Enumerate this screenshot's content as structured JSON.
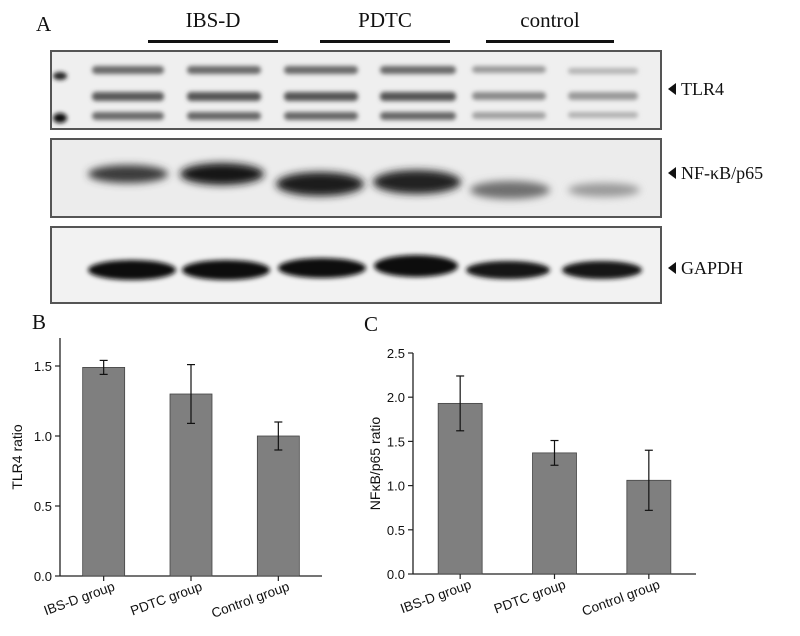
{
  "panel_a": {
    "letter": "A",
    "groups": [
      "IBS-D",
      "PDTC",
      "control"
    ],
    "bands": [
      {
        "name": "TLR4"
      },
      {
        "name": "NF-κB/p65"
      },
      {
        "name": "GAPDH"
      }
    ]
  },
  "panel_b": {
    "letter": "B"
  },
  "panel_c": {
    "letter": "C"
  },
  "chart_data": [
    {
      "type": "bar",
      "categories": [
        "IBS-D group",
        "PDTC group",
        "Control group"
      ],
      "values": [
        1.49,
        1.3,
        1.0
      ],
      "errors": [
        0.05,
        0.21,
        0.1
      ],
      "ylabel": "TLR4 ratio",
      "xlabel": "",
      "ylim": [
        0,
        1.7
      ],
      "yticks": [
        "0.0",
        "0.5",
        "1.0",
        "1.5"
      ],
      "bar_color": "#7f7f7f",
      "grid": false
    },
    {
      "type": "bar",
      "categories": [
        "IBS-D group",
        "PDTC group",
        "Control group"
      ],
      "values": [
        1.93,
        1.37,
        1.06
      ],
      "errors": [
        0.31,
        0.14,
        0.34
      ],
      "ylabel": "NFκB/p65 ratio",
      "xlabel": "",
      "ylim": [
        0,
        2.5
      ],
      "yticks": [
        "0.0",
        "0.5",
        "1.0",
        "1.5",
        "2.0",
        "2.5"
      ],
      "bar_color": "#7f7f7f",
      "grid": false
    }
  ]
}
